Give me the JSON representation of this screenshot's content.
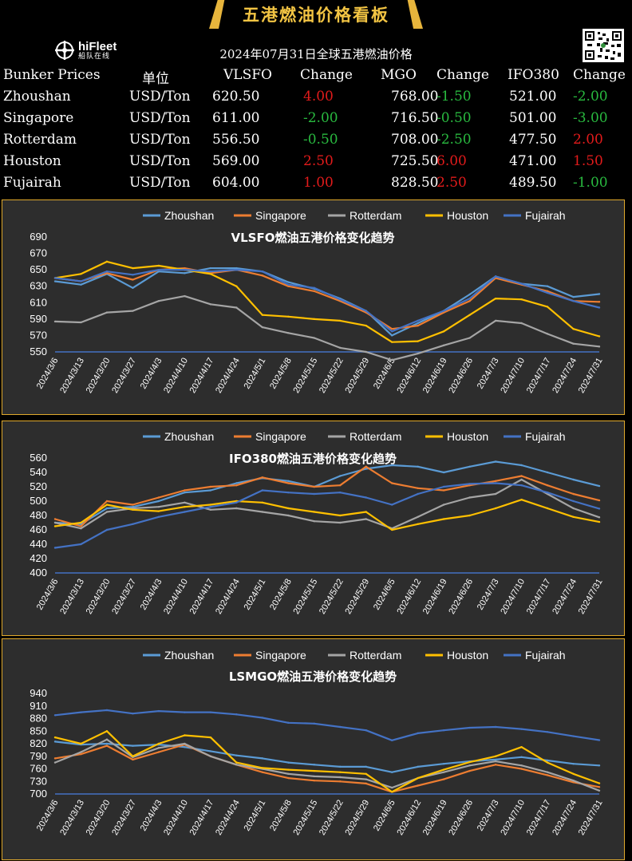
{
  "header": {
    "banner_title": "五港燃油价格看板",
    "logo_name": "hiFleet",
    "logo_sub": "船队在线",
    "subtitle": "2024年07月31日全球五港燃油价格"
  },
  "table": {
    "columns": [
      "Bunker Prices",
      "单位",
      "VLSFO",
      "Change",
      "MGO",
      "Change",
      "IFO380",
      "Change"
    ],
    "rows": [
      {
        "port": "Zhoushan",
        "unit": "USD/Ton",
        "vlsfo": "620.50",
        "vlsfo_change": "4.00",
        "mgo": "768.00",
        "mgo_change": "-1.50",
        "ifo380": "521.00",
        "ifo380_change": "-2.00"
      },
      {
        "port": "Singapore",
        "unit": "USD/Ton",
        "vlsfo": "611.00",
        "vlsfo_change": "-2.00",
        "mgo": "716.50",
        "mgo_change": "-0.50",
        "ifo380": "501.00",
        "ifo380_change": "-3.00"
      },
      {
        "port": "Rotterdam",
        "unit": "USD/Ton",
        "vlsfo": "556.50",
        "vlsfo_change": "-0.50",
        "mgo": "708.00",
        "mgo_change": "-2.50",
        "ifo380": "477.50",
        "ifo380_change": "2.00"
      },
      {
        "port": "Houston",
        "unit": "USD/Ton",
        "vlsfo": "569.00",
        "vlsfo_change": "2.50",
        "mgo": "725.50",
        "mgo_change": "6.00",
        "ifo380": "471.00",
        "ifo380_change": "1.50"
      },
      {
        "port": "Fujairah",
        "unit": "USD/Ton",
        "vlsfo": "604.00",
        "vlsfo_change": "1.00",
        "mgo": "828.50",
        "mgo_change": "2.50",
        "ifo380": "489.50",
        "ifo380_change": "-1.00"
      }
    ]
  },
  "colors": {
    "Zhoushan": "#5b9bd5",
    "Singapore": "#ed7d31",
    "Rotterdam": "#a5a5a5",
    "Houston": "#ffc000",
    "Fujairah": "#4472c4",
    "panel_border": "#e0a92c",
    "up": "#e21b1b",
    "down": "#29b93f"
  },
  "chart_data": [
    {
      "type": "line",
      "title": "VLSFO燃油五港价格变化趋势",
      "ylim": [
        550,
        690
      ],
      "yticks": [
        550,
        570,
        590,
        610,
        630,
        650,
        670,
        690
      ],
      "xtick_labels": [
        "2024/3/6",
        "2024/3/13",
        "2024/3/20",
        "2024/3/27",
        "2024/4/3",
        "2024/4/10",
        "2024/4/17",
        "2024/4/24",
        "2024/5/1",
        "2024/5/8",
        "2024/5/15",
        "2024/5/22",
        "2024/5/29",
        "2024/6/5",
        "2024/6/12",
        "2024/6/19",
        "2024/6/26",
        "2024/7/3",
        "2024/7/10",
        "2024/7/17",
        "2024/7/24",
        "2024/7/31"
      ],
      "x": [
        "2024/3/6",
        "2024/3/13",
        "2024/3/20",
        "2024/3/27",
        "2024/4/3",
        "2024/4/10",
        "2024/4/17",
        "2024/4/24",
        "2024/5/1",
        "2024/5/8",
        "2024/5/15",
        "2024/5/22",
        "2024/5/29",
        "2024/6/5",
        "2024/6/12",
        "2024/6/19",
        "2024/6/26",
        "2024/7/3",
        "2024/7/10",
        "2024/7/17",
        "2024/7/24",
        "2024/7/31"
      ],
      "legend": "top",
      "grid": false,
      "series": [
        {
          "name": "Zhoushan",
          "values": [
            636,
            632,
            645,
            628,
            648,
            646,
            652,
            652,
            648,
            635,
            627,
            615,
            600,
            570,
            585,
            600,
            620,
            642,
            633,
            630,
            617,
            620.5
          ]
        },
        {
          "name": "Singapore",
          "values": [
            640,
            636,
            646,
            638,
            650,
            652,
            646,
            650,
            643,
            630,
            624,
            612,
            598,
            578,
            582,
            598,
            612,
            640,
            632,
            624,
            612,
            611
          ]
        },
        {
          "name": "Rotterdam",
          "values": [
            587,
            586,
            598,
            600,
            612,
            618,
            608,
            604,
            580,
            573,
            567,
            555,
            550,
            540,
            548,
            558,
            567,
            588,
            585,
            572,
            560,
            556.5
          ]
        },
        {
          "name": "Houston",
          "values": [
            640,
            645,
            660,
            652,
            655,
            650,
            645,
            630,
            595,
            593,
            590,
            588,
            582,
            562,
            563,
            575,
            595,
            615,
            614,
            605,
            578,
            569
          ]
        },
        {
          "name": "Fujairah",
          "values": [
            640,
            636,
            648,
            644,
            650,
            650,
            648,
            650,
            648,
            632,
            628,
            614,
            600,
            575,
            588,
            600,
            615,
            642,
            633,
            622,
            612,
            604
          ]
        }
      ]
    },
    {
      "type": "line",
      "title": "IFO380燃油五港价格变化趋势",
      "ylim": [
        400,
        560
      ],
      "yticks": [
        400,
        420,
        440,
        460,
        480,
        500,
        520,
        540,
        560
      ],
      "xtick_labels": [
        "2024/3/6",
        "2024/3/13",
        "2024/3/20",
        "2024/3/27",
        "2024/4/3",
        "2024/4/10",
        "2024/4/17",
        "2024/4/24",
        "2024/5/1",
        "2024/5/8",
        "2024/5/15",
        "2024/5/22",
        "2024/5/29",
        "2024/6/5",
        "2024/6/12",
        "2024/6/19",
        "2024/6/26",
        "2024/7/3",
        "2024/7/10",
        "2024/7/17",
        "2024/7/24",
        "2024/7/31"
      ],
      "x": [
        "2024/3/6",
        "2024/3/13",
        "2024/3/20",
        "2024/3/27",
        "2024/4/3",
        "2024/4/10",
        "2024/4/17",
        "2024/4/24",
        "2024/5/1",
        "2024/5/8",
        "2024/5/15",
        "2024/5/22",
        "2024/5/29",
        "2024/6/5",
        "2024/6/12",
        "2024/6/19",
        "2024/6/26",
        "2024/7/3",
        "2024/7/10",
        "2024/7/17",
        "2024/7/24",
        "2024/7/31"
      ],
      "legend": "top",
      "grid": false,
      "series": [
        {
          "name": "Zhoushan",
          "values": [
            470,
            468,
            490,
            492,
            500,
            512,
            515,
            525,
            532,
            528,
            520,
            535,
            545,
            550,
            548,
            540,
            548,
            555,
            550,
            540,
            530,
            521
          ]
        },
        {
          "name": "Singapore",
          "values": [
            475,
            465,
            500,
            495,
            505,
            515,
            520,
            522,
            533,
            525,
            520,
            522,
            548,
            525,
            518,
            515,
            522,
            528,
            535,
            522,
            510,
            501
          ]
        },
        {
          "name": "Rotterdam",
          "values": [
            470,
            462,
            485,
            490,
            492,
            498,
            488,
            490,
            485,
            480,
            472,
            470,
            475,
            462,
            478,
            495,
            505,
            510,
            530,
            510,
            490,
            477.5
          ]
        },
        {
          "name": "Houston",
          "values": [
            465,
            470,
            495,
            488,
            486,
            492,
            495,
            500,
            498,
            490,
            485,
            480,
            485,
            460,
            468,
            475,
            480,
            490,
            502,
            490,
            478,
            471
          ]
        },
        {
          "name": "Fujairah",
          "values": [
            435,
            440,
            460,
            468,
            478,
            485,
            492,
            498,
            515,
            512,
            510,
            512,
            505,
            495,
            510,
            520,
            524,
            525,
            522,
            512,
            500,
            489.5
          ]
        }
      ]
    },
    {
      "type": "line",
      "title": "LSMGO燃油五港价格变化趋势",
      "ylim": [
        700,
        940
      ],
      "yticks": [
        700,
        730,
        760,
        790,
        820,
        850,
        880,
        910,
        940
      ],
      "xtick_labels": [
        "2024/3/6",
        "2024/3/13",
        "2024/3/20",
        "2024/3/27",
        "2024/4/3",
        "2024/4/10",
        "2024/4/17",
        "2024/4/24",
        "2024/5/1",
        "2024/5/8",
        "2024/5/15",
        "2024/5/22",
        "2024/5/29",
        "2024/6/5",
        "2024/6/12",
        "2024/6/19",
        "2024/6/26",
        "2024/7/3",
        "2024/7/10",
        "2024/7/17",
        "2024/7/24",
        "2024/7/31"
      ],
      "x": [
        "2024/3/6",
        "2024/3/13",
        "2024/3/20",
        "2024/3/27",
        "2024/4/3",
        "2024/4/10",
        "2024/4/17",
        "2024/4/24",
        "2024/5/1",
        "2024/5/8",
        "2024/5/15",
        "2024/5/22",
        "2024/5/29",
        "2024/6/5",
        "2024/6/12",
        "2024/6/19",
        "2024/6/26",
        "2024/7/3",
        "2024/7/10",
        "2024/7/17",
        "2024/7/24",
        "2024/7/31"
      ],
      "legend": "top",
      "grid": false,
      "series": [
        {
          "name": "Zhoushan",
          "values": [
            825,
            818,
            820,
            815,
            818,
            812,
            802,
            792,
            785,
            775,
            770,
            765,
            765,
            752,
            765,
            772,
            778,
            782,
            788,
            780,
            772,
            768
          ]
        },
        {
          "name": "Singapore",
          "values": [
            785,
            795,
            815,
            782,
            800,
            818,
            790,
            770,
            752,
            738,
            732,
            730,
            725,
            705,
            720,
            735,
            755,
            770,
            760,
            745,
            728,
            716.5
          ]
        },
        {
          "name": "Rotterdam",
          "values": [
            775,
            800,
            830,
            788,
            810,
            820,
            790,
            770,
            760,
            748,
            742,
            740,
            735,
            715,
            738,
            752,
            768,
            778,
            768,
            752,
            732,
            708
          ]
        },
        {
          "name": "Houston",
          "values": [
            835,
            820,
            850,
            790,
            820,
            840,
            835,
            775,
            762,
            758,
            755,
            752,
            748,
            705,
            738,
            758,
            776,
            790,
            812,
            775,
            748,
            725.5
          ]
        },
        {
          "name": "Fujairah",
          "values": [
            888,
            895,
            900,
            892,
            898,
            895,
            895,
            890,
            882,
            870,
            868,
            860,
            852,
            828,
            845,
            852,
            858,
            860,
            855,
            848,
            838,
            828.5
          ]
        }
      ]
    }
  ]
}
